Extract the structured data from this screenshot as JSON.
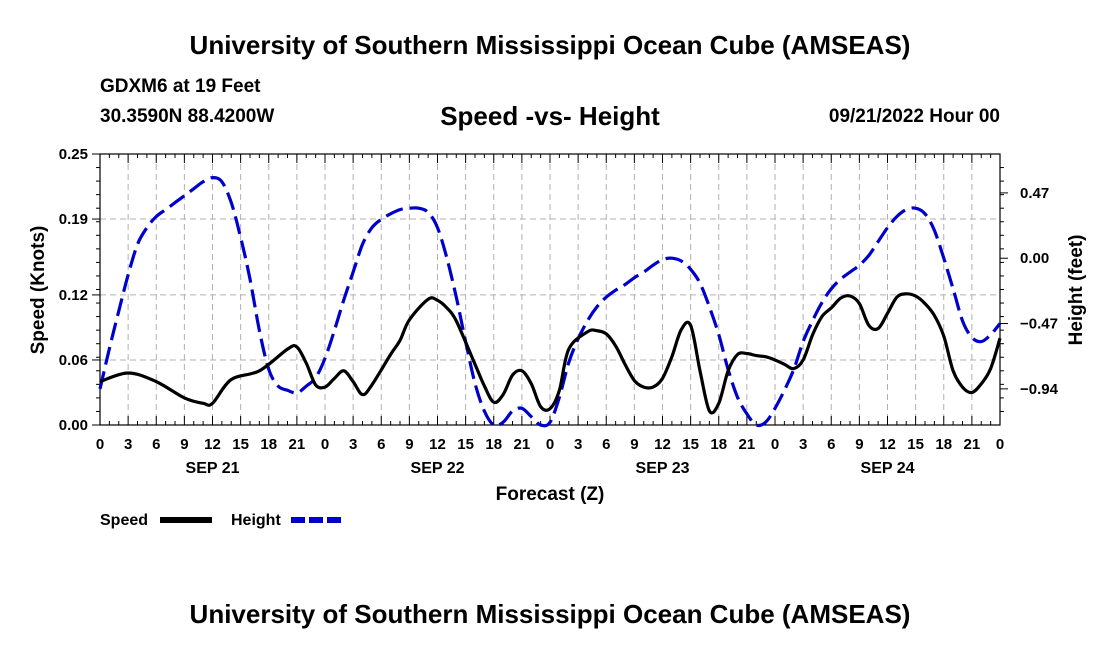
{
  "header": {
    "title": "University of Southern Mississippi Ocean Cube (AMSEAS)",
    "station": "GDXM6 at 19 Feet",
    "coords": "30.3590N  88.4200W",
    "chart_title": "Speed -vs- Height",
    "date": "09/21/2022 Hour 00"
  },
  "footer": {
    "title": "University of Southern Mississippi Ocean Cube (AMSEAS)"
  },
  "chart_data": {
    "type": "line",
    "title": "Speed -vs- Height",
    "xlabel": "Forecast (Z)",
    "ylabel": "Speed (Knots)",
    "y2label": "Height (feet)",
    "xlim": [
      0,
      96
    ],
    "ylim": [
      0,
      0.25
    ],
    "y2lim": [
      -1.2,
      0.75
    ],
    "grid": true,
    "x_tick_labels": [
      "0",
      "3",
      "6",
      "9",
      "12",
      "15",
      "18",
      "21",
      "0",
      "3",
      "6",
      "9",
      "12",
      "15",
      "18",
      "21",
      "0",
      "3",
      "6",
      "9",
      "12",
      "15",
      "18",
      "21",
      "0",
      "3",
      "6",
      "9",
      "12",
      "15",
      "18",
      "21",
      "0"
    ],
    "day_labels": [
      {
        "label": "SEP 21",
        "hour": 12
      },
      {
        "label": "SEP 22",
        "hour": 36
      },
      {
        "label": "SEP 23",
        "hour": 60
      },
      {
        "label": "SEP 24",
        "hour": 84
      }
    ],
    "y_ticks": [
      0.0,
      0.06,
      0.12,
      0.19,
      0.25
    ],
    "y_tick_labels": [
      "0.00",
      "0.06",
      "0.12",
      "0.19",
      "0.25"
    ],
    "y2_ticks": [
      -0.94,
      -0.47,
      0.0,
      0.47
    ],
    "y2_tick_labels": [
      "−0.94",
      "−0.47",
      "0.00",
      "0.47"
    ],
    "series": [
      {
        "name": "Speed",
        "axis": "left",
        "color": "#000000",
        "style": "solid",
        "x": [
          0,
          3,
          6,
          9,
          11,
          12,
          14,
          17,
          20,
          21,
          22,
          23,
          24,
          25,
          26,
          27,
          28,
          29,
          31,
          32,
          33,
          35,
          36,
          37,
          38,
          40,
          41,
          42,
          43,
          44,
          45,
          46,
          47,
          48,
          49,
          50,
          52,
          53,
          54,
          55,
          56,
          57,
          58,
          59,
          60,
          61,
          62,
          63,
          64,
          65,
          66,
          67,
          68,
          69,
          70,
          71,
          72,
          73,
          74,
          75,
          76,
          77,
          78,
          79,
          80,
          81,
          82,
          83,
          84,
          85,
          86,
          87,
          88,
          89,
          90,
          91,
          92,
          93,
          94,
          95,
          96
        ],
        "values": [
          0.04,
          0.048,
          0.04,
          0.025,
          0.02,
          0.02,
          0.042,
          0.05,
          0.07,
          0.072,
          0.057,
          0.037,
          0.035,
          0.043,
          0.05,
          0.04,
          0.028,
          0.037,
          0.065,
          0.078,
          0.097,
          0.116,
          0.115,
          0.108,
          0.096,
          0.056,
          0.036,
          0.021,
          0.028,
          0.046,
          0.05,
          0.038,
          0.017,
          0.015,
          0.032,
          0.07,
          0.086,
          0.087,
          0.084,
          0.073,
          0.056,
          0.041,
          0.035,
          0.035,
          0.043,
          0.063,
          0.088,
          0.092,
          0.05,
          0.013,
          0.02,
          0.05,
          0.065,
          0.066,
          0.064,
          0.063,
          0.06,
          0.056,
          0.052,
          0.06,
          0.083,
          0.1,
          0.108,
          0.117,
          0.119,
          0.112,
          0.092,
          0.089,
          0.103,
          0.118,
          0.121,
          0.119,
          0.112,
          0.101,
          0.082,
          0.05,
          0.035,
          0.03,
          0.038,
          0.052,
          0.08
        ]
      },
      {
        "name": "Height",
        "axis": "right",
        "color": "#0000cc",
        "style": "dashed",
        "x": [
          0,
          1,
          2,
          3,
          4,
          5,
          6,
          7,
          8,
          9,
          10,
          11,
          12,
          13,
          14,
          15,
          16,
          17,
          18,
          19,
          20,
          21,
          22,
          23,
          24,
          25,
          26,
          27,
          28,
          29,
          30,
          31,
          32,
          33,
          34,
          35,
          36,
          37,
          38,
          39,
          40,
          41,
          42,
          43,
          44,
          45,
          46,
          47,
          48,
          49,
          50,
          51,
          52,
          53,
          54,
          55,
          56,
          57,
          58,
          59,
          60,
          61,
          62,
          63,
          64,
          65,
          66,
          67,
          68,
          69,
          70,
          71,
          72,
          73,
          74,
          75,
          76,
          77,
          78,
          79,
          80,
          81,
          82,
          83,
          84,
          85,
          86,
          87,
          88,
          89,
          90,
          91,
          92,
          93,
          94,
          95,
          96
        ],
        "values": [
          -0.94,
          -0.65,
          -0.38,
          -0.12,
          0.1,
          0.22,
          0.3,
          0.35,
          0.4,
          0.45,
          0.5,
          0.55,
          0.58,
          0.55,
          0.4,
          0.15,
          -0.15,
          -0.52,
          -0.8,
          -0.92,
          -0.95,
          -0.97,
          -0.92,
          -0.86,
          -0.72,
          -0.52,
          -0.3,
          -0.1,
          0.1,
          0.22,
          0.28,
          0.32,
          0.35,
          0.36,
          0.36,
          0.33,
          0.22,
          0.0,
          -0.28,
          -0.6,
          -0.9,
          -1.1,
          -1.2,
          -1.18,
          -1.1,
          -1.08,
          -1.14,
          -1.2,
          -1.18,
          -1.0,
          -0.75,
          -0.58,
          -0.45,
          -0.35,
          -0.28,
          -0.23,
          -0.19,
          -0.14,
          -0.1,
          -0.05,
          -0.01,
          0.0,
          -0.02,
          -0.08,
          -0.18,
          -0.35,
          -0.55,
          -0.8,
          -1.0,
          -1.12,
          -1.2,
          -1.18,
          -1.08,
          -0.95,
          -0.8,
          -0.6,
          -0.45,
          -0.32,
          -0.22,
          -0.15,
          -0.1,
          -0.05,
          0.02,
          0.12,
          0.22,
          0.3,
          0.35,
          0.36,
          0.32,
          0.2,
          0.0,
          -0.22,
          -0.45,
          -0.57,
          -0.6,
          -0.55,
          -0.47
        ]
      }
    ],
    "legend": {
      "placement": "bottom-left",
      "items": [
        "Speed",
        "Height"
      ]
    }
  }
}
